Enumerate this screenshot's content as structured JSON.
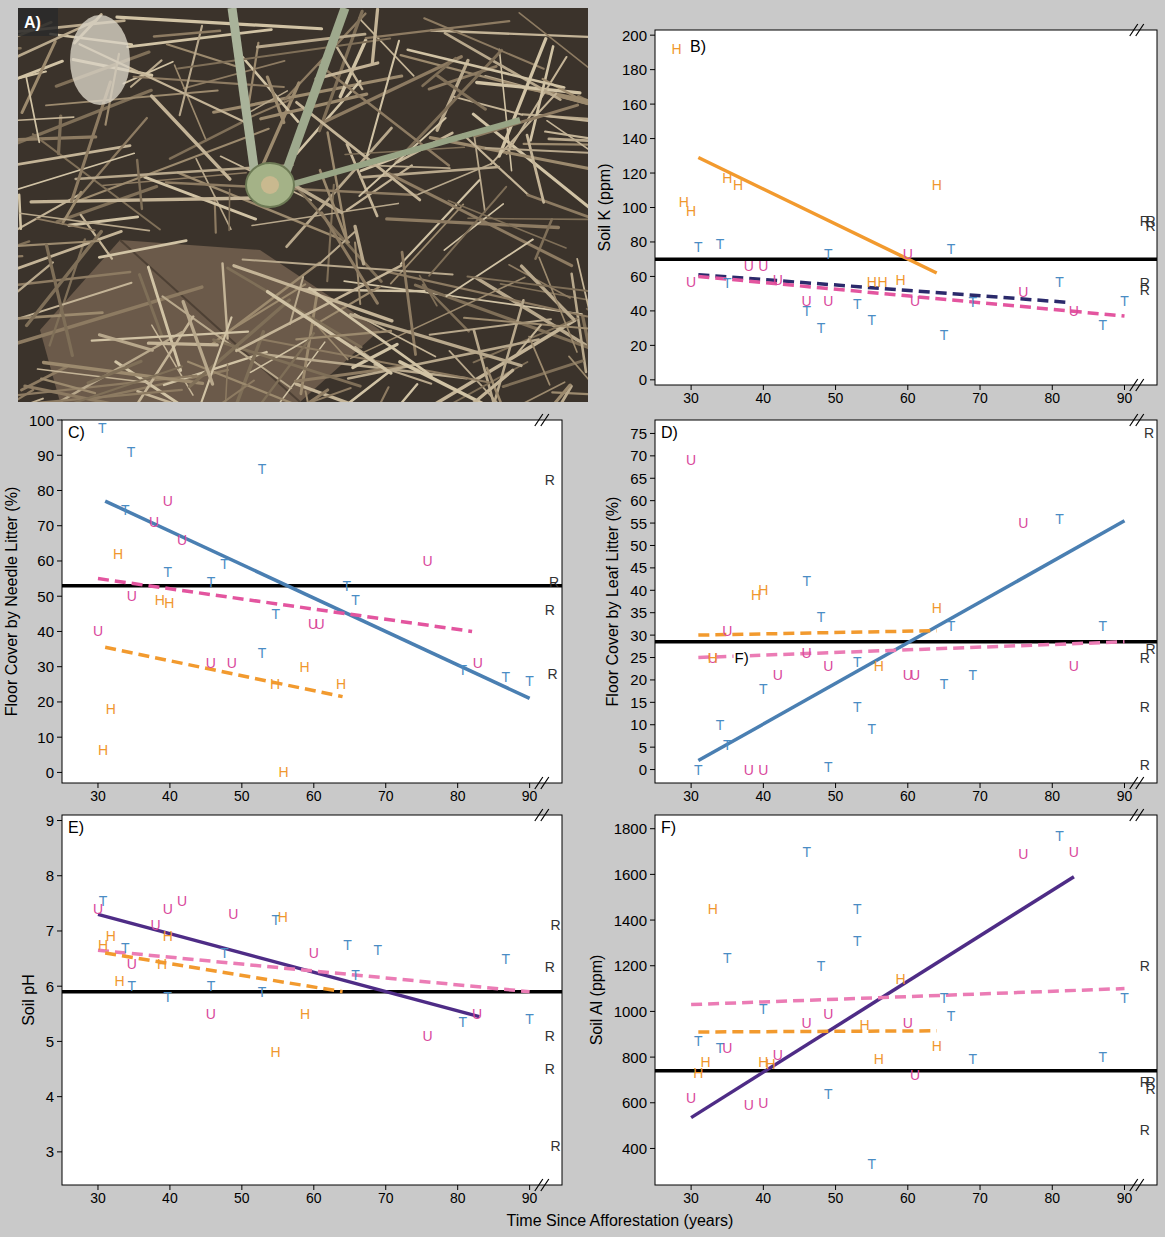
{
  "photo": {
    "label": "A)"
  },
  "xlabel": "Time Since Afforestation (years)",
  "chart_data": [
    {
      "type": "scatter",
      "title": "B)",
      "ylabel": "Soil K (ppm)",
      "xlim": [
        25,
        94.5
      ],
      "xticks": [
        30,
        40,
        50,
        60,
        70,
        80,
        90
      ],
      "ylim": [
        -3,
        203
      ],
      "yticks": [
        0,
        20,
        40,
        60,
        80,
        100,
        120,
        140,
        160,
        180,
        200
      ],
      "grid": false,
      "series": [
        {
          "type": "line",
          "line_style": "solid",
          "color": "#000000",
          "x": [
            25,
            94.5
          ],
          "values": [
            70,
            70
          ]
        },
        {
          "type": "line",
          "line_style": "solid",
          "color": "#f29a2e",
          "x": [
            31,
            64
          ],
          "values": [
            129,
            62
          ]
        },
        {
          "type": "line",
          "line_style": "dashed",
          "color": "#2b2a6b",
          "x": [
            31,
            82
          ],
          "values": [
            61,
            45
          ]
        },
        {
          "type": "line",
          "line_style": "dashed",
          "color": "#e3559f",
          "x": [
            31,
            90
          ],
          "values": [
            60,
            37
          ]
        },
        {
          "name": "T",
          "type": "scatter",
          "marker": "letter",
          "color": "#4a8cc4",
          "x": [
            31,
            34,
            35,
            46,
            48,
            49,
            53,
            55,
            65,
            66,
            69,
            81,
            87,
            90
          ],
          "values": [
            77,
            79,
            56,
            40,
            30,
            73,
            44,
            35,
            26,
            76,
            45,
            57,
            32,
            46
          ]
        },
        {
          "name": "U",
          "type": "scatter",
          "marker": "letter",
          "color": "#d9489c",
          "x": [
            30,
            38,
            40,
            42,
            46,
            49,
            60,
            61,
            76,
            83
          ],
          "values": [
            57,
            66,
            66,
            58,
            46,
            46,
            73,
            46,
            51,
            40
          ]
        },
        {
          "name": "H",
          "type": "scatter",
          "marker": "letter",
          "color": "#f0972e",
          "x": [
            28,
            29,
            30,
            35,
            36.5,
            55,
            56.5,
            59,
            64
          ],
          "values": [
            192,
            103,
            98,
            117,
            113,
            57,
            57,
            58,
            113
          ]
        },
        {
          "name": "R",
          "type": "scatter",
          "marker": "letter",
          "color": "#333333",
          "x": [
            92.8,
            93.6,
            93.6,
            92.8,
            92.8
          ],
          "values": [
            92,
            92,
            89,
            56,
            52
          ]
        }
      ]
    },
    {
      "type": "scatter",
      "title": "C)",
      "ylabel": "Floor Cover by Needle Litter (%)",
      "xlim": [
        25,
        94.5
      ],
      "xticks": [
        30,
        40,
        50,
        60,
        70,
        80,
        90
      ],
      "ylim": [
        -3,
        100
      ],
      "yticks": [
        0,
        10,
        20,
        30,
        40,
        50,
        60,
        70,
        80,
        90,
        100
      ],
      "grid": false,
      "series": [
        {
          "type": "line",
          "line_style": "solid",
          "color": "#000000",
          "x": [
            25,
            94.5
          ],
          "values": [
            53,
            53
          ]
        },
        {
          "type": "line",
          "line_style": "solid",
          "color": "#4a7fb2",
          "x": [
            31,
            90
          ],
          "values": [
            77,
            21
          ]
        },
        {
          "type": "line",
          "line_style": "dashed",
          "color": "#e3559f",
          "x": [
            30,
            82
          ],
          "values": [
            55,
            40
          ]
        },
        {
          "type": "line",
          "line_style": "dashed",
          "color": "#f29a2e",
          "x": [
            31,
            64
          ],
          "values": [
            35.5,
            21.5
          ]
        },
        {
          "name": "T",
          "type": "scatter",
          "marker": "letter",
          "color": "#4a8cc4",
          "x": [
            30.6,
            34.6,
            33.8,
            39.7,
            45.7,
            47.6,
            52.8,
            52.8,
            54.7,
            64.6,
            65.8,
            80.7,
            86.7,
            90
          ],
          "values": [
            97.7,
            91,
            74.5,
            57,
            54,
            59,
            86,
            34,
            45,
            53,
            49,
            29,
            27,
            26
          ]
        },
        {
          "name": "U",
          "type": "scatter",
          "marker": "letter",
          "color": "#d9489c",
          "x": [
            30,
            34.7,
            37.8,
            39.7,
            41.7,
            45.7,
            48.6,
            59.9,
            60.8,
            75.8,
            82.8
          ],
          "values": [
            40,
            50,
            71,
            77,
            66,
            31,
            31,
            42,
            42,
            60,
            31
          ]
        },
        {
          "name": "H",
          "type": "scatter",
          "marker": "letter",
          "color": "#f0972e",
          "x": [
            30.7,
            31.8,
            32.8,
            38.6,
            39.9,
            54.6,
            55.8,
            58.7,
            63.8
          ],
          "values": [
            6.5,
            18,
            62,
            49,
            48,
            25,
            0,
            30,
            25
          ]
        },
        {
          "name": "R",
          "type": "scatter",
          "marker": "letter",
          "color": "#333333",
          "x": [
            92.8,
            93.4,
            92.8,
            93.2
          ],
          "values": [
            83,
            54,
            46,
            28
          ]
        }
      ]
    },
    {
      "type": "scatter",
      "title": "D)",
      "ylabel": "Floor Cover by Leaf Litter (%)",
      "xlim": [
        25,
        94.5
      ],
      "xticks": [
        30,
        40,
        50,
        60,
        70,
        80,
        90
      ],
      "ylim": [
        -3,
        78
      ],
      "yticks": [
        0,
        5,
        10,
        15,
        20,
        25,
        30,
        35,
        40,
        45,
        50,
        55,
        60,
        65,
        70,
        75
      ],
      "grid": false,
      "annotations": [
        {
          "text": "F)",
          "x": 37,
          "y": 25
        }
      ],
      "series": [
        {
          "type": "line",
          "line_style": "solid",
          "color": "#000000",
          "x": [
            25,
            94.5
          ],
          "values": [
            28.5,
            28.5
          ]
        },
        {
          "type": "line",
          "line_style": "solid",
          "color": "#4a7fb2",
          "x": [
            31,
            90
          ],
          "values": [
            2,
            55.5
          ]
        },
        {
          "type": "line",
          "line_style": "dashed",
          "color": "#f29a2e",
          "x": [
            31,
            64
          ],
          "values": [
            30,
            31
          ]
        },
        {
          "type": "line",
          "line_style": "dashed",
          "color": "#eb7cb5",
          "x": [
            31,
            90
          ],
          "values": [
            25,
            28.5
          ]
        },
        {
          "name": "T",
          "type": "scatter",
          "marker": "letter",
          "color": "#4a8cc4",
          "x": [
            31,
            34,
            35,
            40,
            46,
            48,
            49,
            53,
            53,
            55,
            65,
            66,
            69,
            81,
            87
          ],
          "values": [
            0,
            10,
            5.5,
            18,
            42,
            34,
            0.5,
            14,
            24,
            9,
            19,
            32,
            21,
            56,
            32
          ]
        },
        {
          "name": "U",
          "type": "scatter",
          "marker": "letter",
          "color": "#d9489c",
          "x": [
            30,
            33,
            35,
            38,
            40,
            42,
            46,
            49,
            60,
            61,
            76,
            83
          ],
          "values": [
            69,
            25,
            31,
            0,
            0,
            21,
            26,
            23,
            21,
            21,
            55,
            23
          ]
        },
        {
          "name": "H",
          "type": "scatter",
          "marker": "letter",
          "color": "#f0972e",
          "x": [
            33,
            39,
            40,
            56,
            64
          ],
          "values": [
            25,
            39,
            40,
            23,
            36
          ]
        },
        {
          "name": "R",
          "type": "scatter",
          "marker": "letter",
          "color": "#333333",
          "x": [
            93.4,
            92.8,
            93.6,
            92.8,
            92.8
          ],
          "values": [
            75,
            25,
            27,
            14,
            1
          ]
        }
      ]
    },
    {
      "type": "scatter",
      "title": "E)",
      "ylabel": "Soil pH",
      "xlim": [
        25,
        94.5
      ],
      "xticks": [
        30,
        40,
        50,
        60,
        70,
        80,
        90
      ],
      "ylim": [
        2.4,
        9.1
      ],
      "yticks": [
        3,
        4,
        5,
        6,
        7,
        8,
        9
      ],
      "grid": false,
      "series": [
        {
          "type": "line",
          "line_style": "solid",
          "color": "#000000",
          "x": [
            25,
            94.5
          ],
          "values": [
            5.9,
            5.9
          ]
        },
        {
          "type": "line",
          "line_style": "solid",
          "color": "#4e2c86",
          "x": [
            30,
            83
          ],
          "values": [
            7.3,
            5.45
          ]
        },
        {
          "type": "line",
          "line_style": "dashed",
          "color": "#eb7cb5",
          "x": [
            30,
            90
          ],
          "values": [
            6.65,
            5.9
          ]
        },
        {
          "type": "line",
          "line_style": "dashed",
          "color": "#f29a2e",
          "x": [
            31,
            64
          ],
          "values": [
            6.6,
            5.9
          ]
        },
        {
          "name": "T",
          "type": "scatter",
          "marker": "letter",
          "color": "#4a8cc4",
          "x": [
            30.7,
            33.8,
            34.7,
            39.7,
            45.7,
            47.6,
            52.8,
            54.7,
            64.7,
            65.8,
            68.9,
            80.7,
            86.7,
            90
          ],
          "values": [
            7.55,
            6.7,
            6.0,
            5.8,
            6.0,
            6.6,
            5.9,
            7.2,
            6.75,
            6.2,
            6.65,
            5.35,
            6.5,
            5.4
          ]
        },
        {
          "name": "U",
          "type": "scatter",
          "marker": "letter",
          "color": "#d9489c",
          "x": [
            30,
            34.7,
            38,
            39.7,
            41.7,
            45.7,
            48.8,
            60,
            75.8,
            82.7
          ],
          "values": [
            7.4,
            6.4,
            7.1,
            7.4,
            7.55,
            5.5,
            7.3,
            6.6,
            5.1,
            5.5
          ]
        },
        {
          "name": "H",
          "type": "scatter",
          "marker": "letter",
          "color": "#f0972e",
          "x": [
            30.7,
            31.8,
            33,
            38.9,
            39.7,
            54.7,
            55.7,
            58.8
          ],
          "values": [
            6.75,
            6.9,
            6.1,
            6.4,
            6.9,
            4.8,
            7.25,
            5.5
          ]
        },
        {
          "name": "R",
          "type": "scatter",
          "marker": "letter",
          "color": "#333333",
          "x": [
            93.6,
            92.8,
            92.8,
            92.8,
            93.6
          ],
          "values": [
            7.1,
            6.35,
            5.1,
            4.5,
            3.1
          ]
        }
      ]
    },
    {
      "type": "scatter",
      "title": "F)",
      "ylabel": "Soil Al (ppm)",
      "xlim": [
        25,
        94.5
      ],
      "xticks": [
        30,
        40,
        50,
        60,
        70,
        80,
        90
      ],
      "ylim": [
        240,
        1860
      ],
      "yticks": [
        400,
        600,
        800,
        1000,
        1200,
        1400,
        1600,
        1800
      ],
      "grid": false,
      "series": [
        {
          "type": "line",
          "line_style": "solid",
          "color": "#000000",
          "x": [
            25,
            94.5
          ],
          "values": [
            740,
            740
          ]
        },
        {
          "type": "line",
          "line_style": "solid",
          "color": "#4e2c86",
          "x": [
            30,
            83
          ],
          "values": [
            535,
            1590
          ]
        },
        {
          "type": "line",
          "line_style": "dashed",
          "color": "#eb7cb5",
          "x": [
            30,
            90
          ],
          "values": [
            1030,
            1100
          ]
        },
        {
          "type": "line",
          "line_style": "dashed",
          "color": "#f29a2e",
          "x": [
            31,
            64
          ],
          "values": [
            910,
            915
          ]
        },
        {
          "name": "T",
          "type": "scatter",
          "marker": "letter",
          "color": "#4a8cc4",
          "x": [
            31,
            34,
            35,
            40,
            46,
            48,
            49,
            53,
            53,
            55,
            65,
            66,
            69,
            81,
            87,
            90
          ],
          "values": [
            870,
            840,
            1235,
            1010,
            1700,
            1200,
            640,
            1310,
            1450,
            330,
            1060,
            980,
            790,
            1770,
            800,
            1060
          ]
        },
        {
          "name": "U",
          "type": "scatter",
          "marker": "letter",
          "color": "#d9489c",
          "x": [
            30,
            35,
            38,
            40,
            42,
            46,
            49,
            60,
            61,
            76,
            83
          ],
          "values": [
            620,
            840,
            590,
            600,
            810,
            950,
            990,
            950,
            720,
            1690,
            1700
          ]
        },
        {
          "name": "H",
          "type": "scatter",
          "marker": "letter",
          "color": "#f0972e",
          "x": [
            31,
            32,
            33,
            40,
            41,
            54,
            56,
            59,
            64
          ],
          "values": [
            730,
            780,
            1450,
            780,
            770,
            940,
            790,
            1140,
            850
          ]
        },
        {
          "name": "R",
          "type": "scatter",
          "marker": "letter",
          "color": "#333333",
          "x": [
            92.8,
            93.6,
            92.8,
            93.6,
            92.8
          ],
          "values": [
            1200,
            690,
            690,
            660,
            480
          ]
        }
      ]
    }
  ]
}
